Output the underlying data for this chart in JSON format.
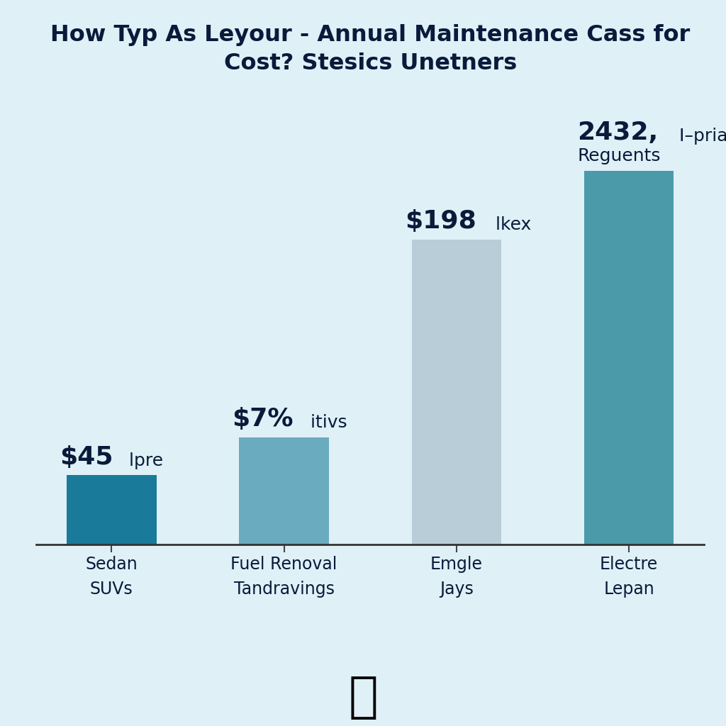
{
  "title_line1": "How Typ As Leyour - Annual Maintenance Cass for",
  "title_line2": "Cost? Stesics Unetners",
  "categories": [
    "Sedan\nSUVs",
    "Fuel Renoval\nTandravings",
    "Emgle\nJays",
    "Electre\nLepan"
  ],
  "values": [
    1.0,
    1.55,
    4.4,
    5.4
  ],
  "bar_colors": [
    "#1a7a9a",
    "#6aabbf",
    "#b8cdd8",
    "#4a9aaa"
  ],
  "annotations_bold": [
    "$45",
    "$7%",
    "$198",
    "2432,"
  ],
  "annotations_light": [
    " lpre",
    " itivs",
    " lkex",
    " I–pria"
  ],
  "annotations_line2": [
    "",
    "",
    "",
    "Reguents"
  ],
  "background_color": "#dff0f7",
  "title_color": "#0a1a3a",
  "label_color": "#0a1a3a",
  "annotation_color": "#0a1a3a",
  "figsize": [
    10.24,
    10.24
  ],
  "dpi": 100,
  "ylim": [
    0,
    6.5
  ]
}
